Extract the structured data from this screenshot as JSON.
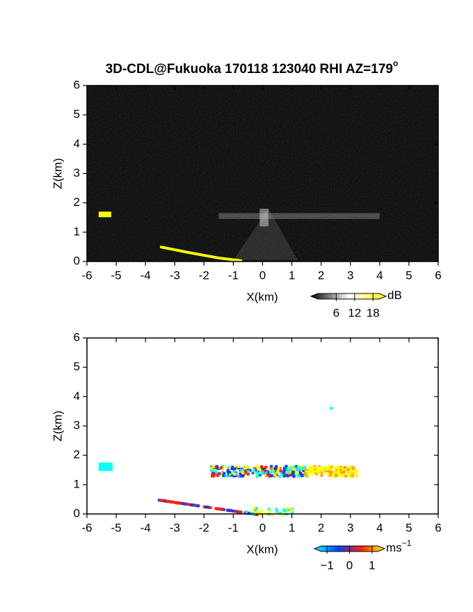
{
  "chart_data": [
    {
      "type": "rhi",
      "title": "3D-CDL@Fukuoka 170118 123040 RHI AZ=179",
      "title_sup": "o",
      "xlabel": "X(km)",
      "ylabel": "Z(km)",
      "xlim": [
        -6,
        6
      ],
      "ylim": [
        0,
        6
      ],
      "xticks": [
        -6,
        -5,
        -4,
        -3,
        -2,
        -1,
        0,
        1,
        2,
        3,
        4,
        5,
        6
      ],
      "yticks": [
        0,
        1,
        2,
        3,
        4,
        5,
        6
      ],
      "background": "noise",
      "colorbar": {
        "label": "dB",
        "lim": [
          0,
          20
        ],
        "ticks": [
          6,
          12,
          18
        ],
        "colors": [
          "#000000",
          "#ffffff",
          "#ffff00"
        ]
      }
    },
    {
      "type": "rhi",
      "xlabel": "X(km)",
      "ylabel": "Z(km)",
      "xlim": [
        -6,
        6
      ],
      "ylim": [
        0,
        6
      ],
      "xticks": [
        -6,
        -5,
        -4,
        -3,
        -2,
        -1,
        0,
        1,
        2,
        3,
        4,
        5,
        6
      ],
      "yticks": [
        0,
        1,
        2,
        3,
        4,
        5,
        6
      ],
      "background": "white",
      "colorbar": {
        "label": "ms",
        "label_sup": "−1",
        "lim": [
          -1.25,
          1.25
        ],
        "ticks": [
          {
            "value": -1,
            "label": "−1"
          },
          0,
          1
        ],
        "colors": [
          "#00ffff",
          "#0040ff",
          "#ff2000",
          "#ffff00"
        ]
      }
    }
  ]
}
